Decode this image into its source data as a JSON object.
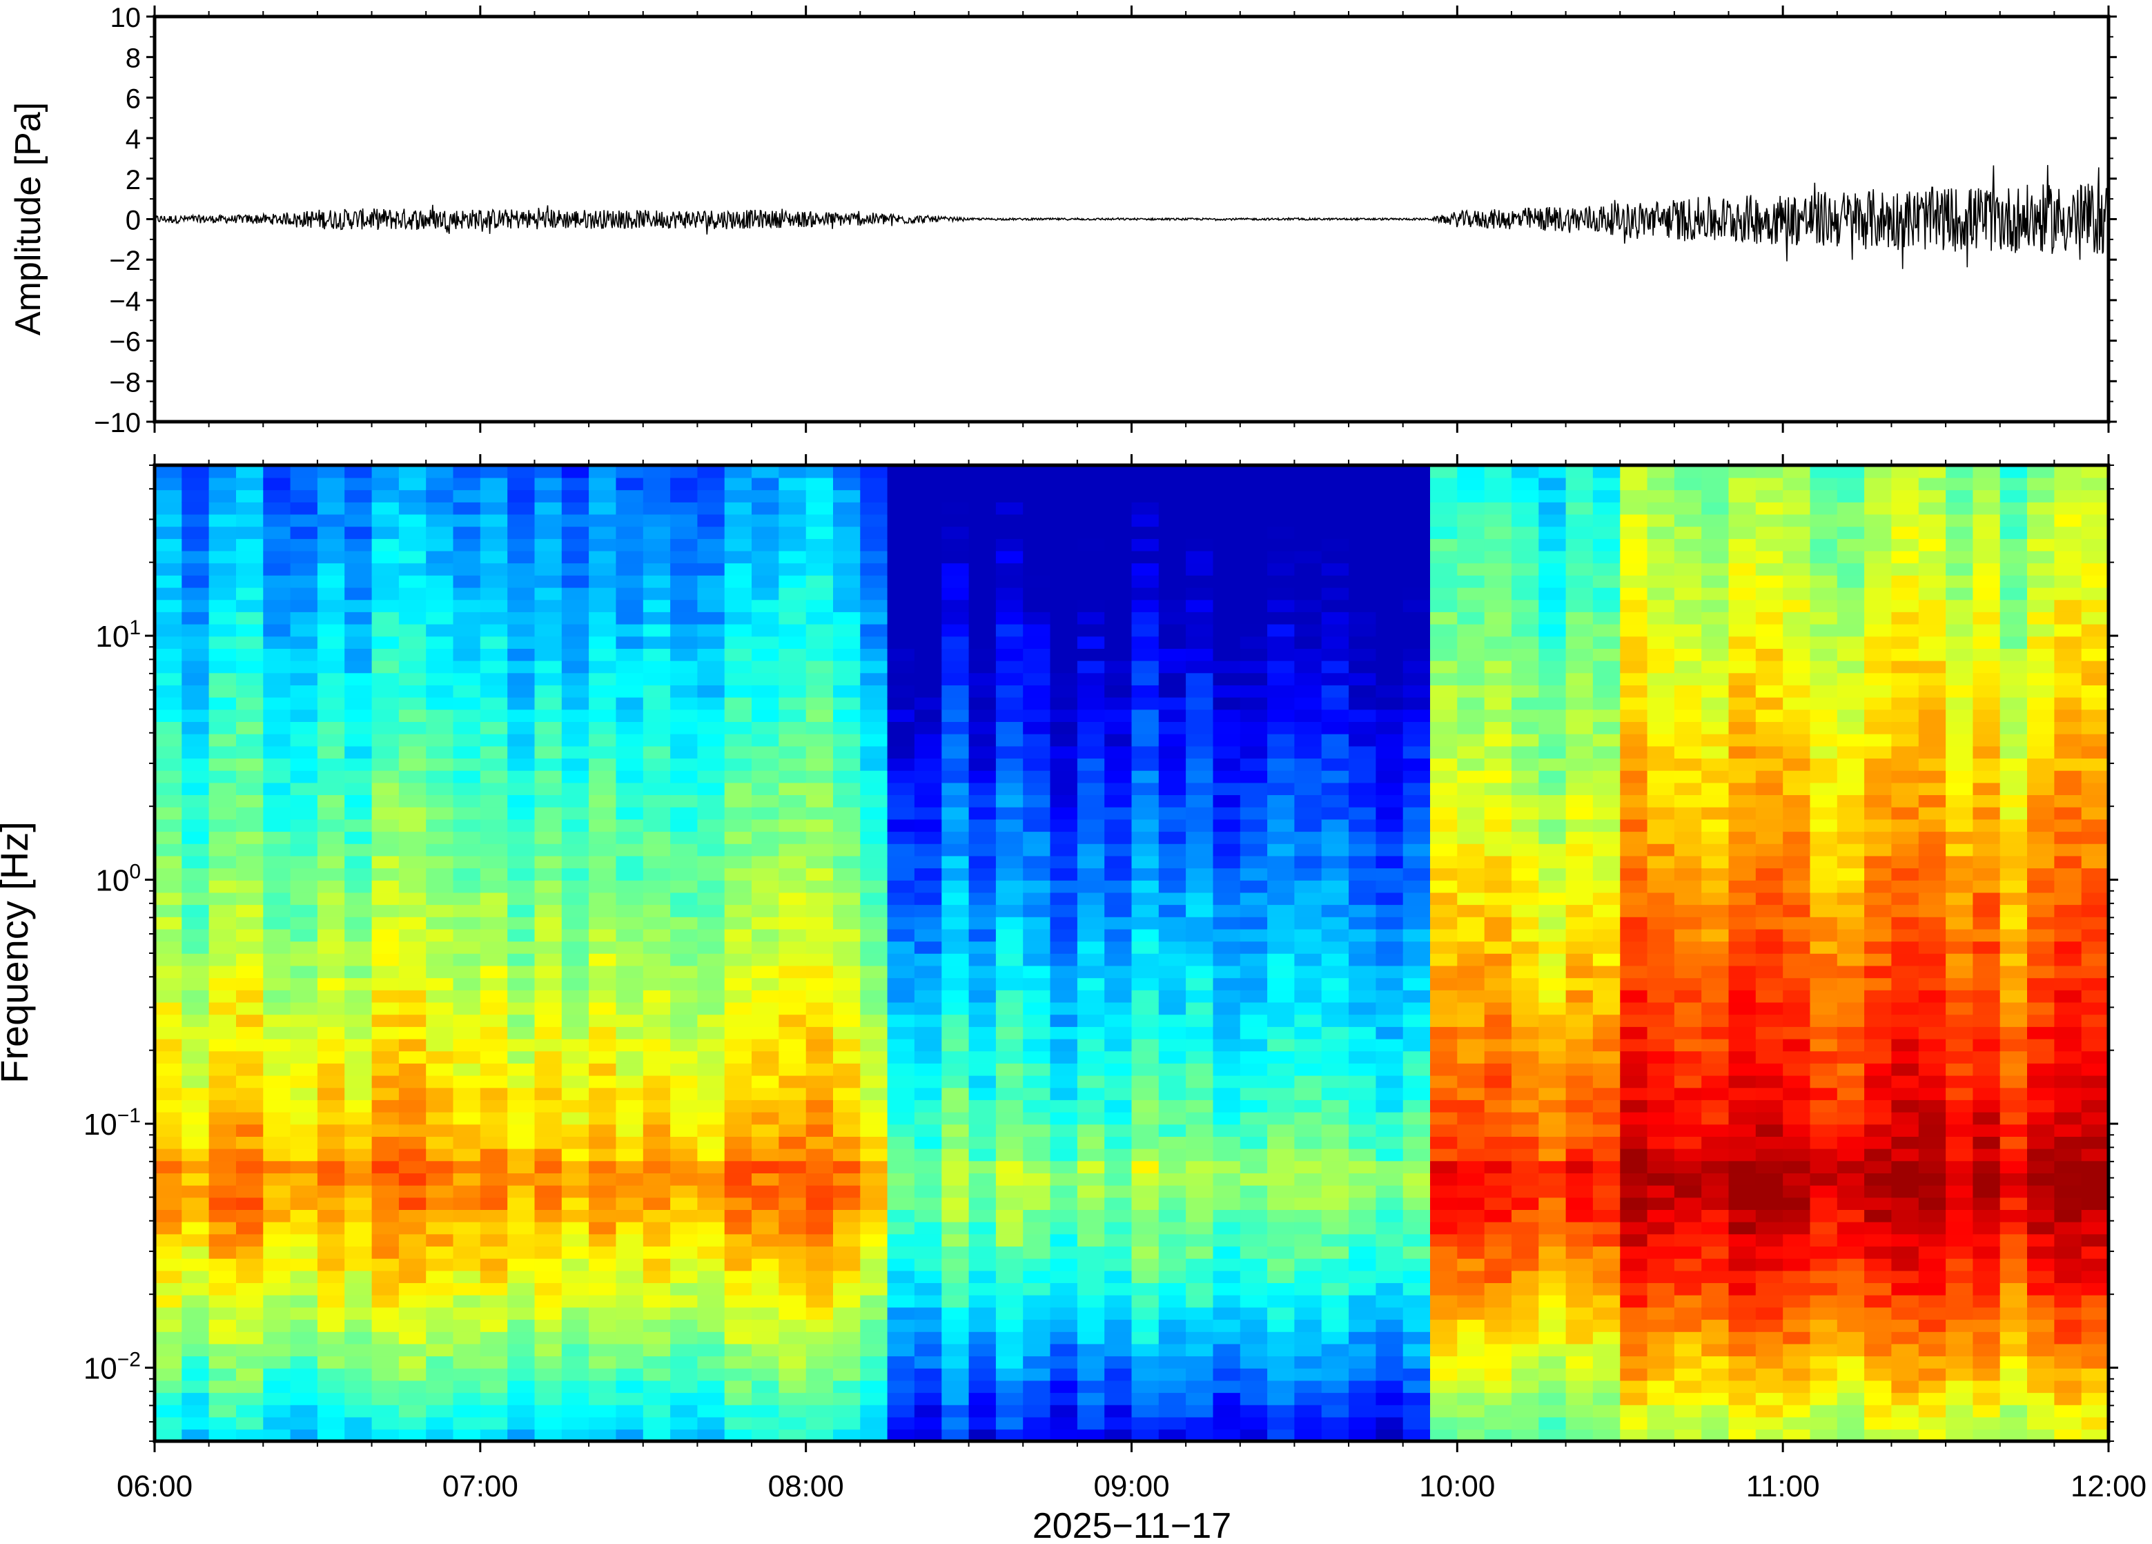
{
  "chart_data": [
    {
      "type": "line",
      "ylabel": "Amplitude [Pa]",
      "ylim": [
        -10,
        10
      ],
      "y_ticks": [
        "10",
        "8",
        "6",
        "4",
        "2",
        "0",
        "−2",
        "−4",
        "−6",
        "−8",
        "−10"
      ],
      "y_tick_values": [
        10,
        8,
        6,
        4,
        2,
        0,
        -2,
        -4,
        -6,
        -8,
        -10
      ],
      "xlim": [
        "06:00",
        "12:00"
      ],
      "envelope": {
        "name": "",
        "x": [
          "06:00",
          "06:15",
          "06:25",
          "06:30",
          "06:45",
          "07:00",
          "07:15",
          "07:30",
          "07:45",
          "08:00",
          "08:15",
          "08:30",
          "09:00",
          "09:30",
          "09:55",
          "10:00",
          "10:15",
          "10:30",
          "10:45",
          "11:00",
          "11:15",
          "11:30",
          "11:45",
          "12:00"
        ],
        "amplitude": [
          0.2,
          0.2,
          0.3,
          0.5,
          0.55,
          0.5,
          0.5,
          0.45,
          0.5,
          0.4,
          0.3,
          0.05,
          0.05,
          0.05,
          0.05,
          0.4,
          0.6,
          0.8,
          1.1,
          1.3,
          1.5,
          1.6,
          1.7,
          1.8
        ]
      },
      "color": "#000000"
    },
    {
      "type": "heatmap",
      "ylabel": "Frequency [Hz]",
      "xlabel": "2025−11−17",
      "y_scale": "log",
      "ylim": [
        0.005,
        50
      ],
      "y_ticks": [
        {
          "value": 0.01,
          "base": "10",
          "exp": "−2"
        },
        {
          "value": 0.1,
          "base": "10",
          "exp": "−1"
        },
        {
          "value": 1,
          "base": "10",
          "exp": "0"
        },
        {
          "value": 10,
          "base": "10",
          "exp": "1"
        }
      ],
      "x_ticks": [
        "06:00",
        "07:00",
        "08:00",
        "09:00",
        "10:00",
        "11:00",
        "12:00"
      ],
      "x_tick_hours": [
        6,
        7,
        8,
        9,
        10,
        11,
        12
      ],
      "colormap": "jet",
      "spectral_peak_hz": 0.07,
      "segments": [
        {
          "start": "06:00",
          "end": "08:13",
          "level": 0.5
        },
        {
          "start": "08:13",
          "end": "09:57",
          "level": 0.28
        },
        {
          "start": "09:57",
          "end": "10:30",
          "level": 0.58
        },
        {
          "start": "10:30",
          "end": "12:00",
          "level": 0.7
        }
      ]
    }
  ]
}
